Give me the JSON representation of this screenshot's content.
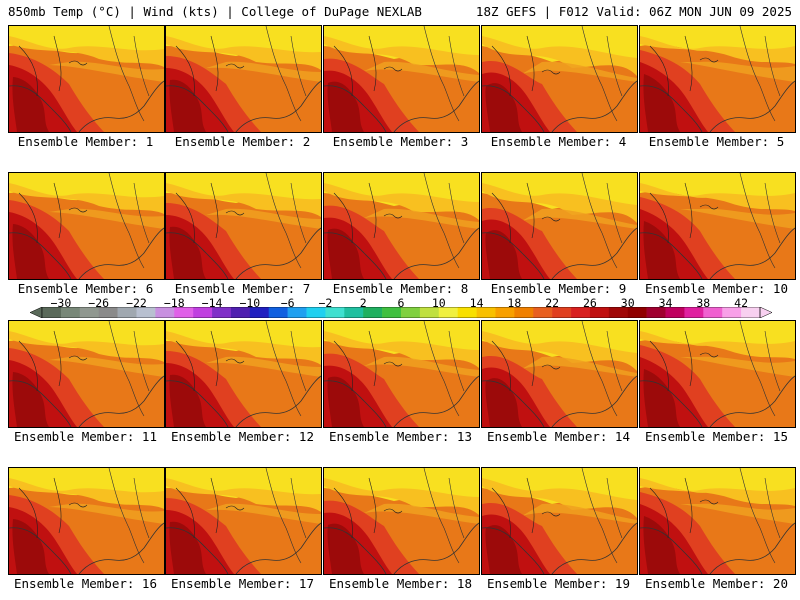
{
  "header": {
    "left": "850mb Temp (°C) | Wind (kts) | College of DuPage NEXLAB",
    "right": "18Z GEFS | F012 Valid: 06Z MON JUN 09 2025"
  },
  "member_label_prefix": "Ensemble Member: ",
  "members": [
    1,
    2,
    3,
    4,
    5,
    6,
    7,
    8,
    9,
    10,
    11,
    12,
    13,
    14,
    15,
    16,
    17,
    18,
    19,
    20
  ],
  "colorbar": {
    "tick_labels": [
      "−30",
      "−26",
      "−22",
      "−18",
      "−14",
      "−10",
      "−6",
      "−2",
      "2",
      "6",
      "10",
      "14",
      "18",
      "22",
      "26",
      "30",
      "34",
      "38",
      "42"
    ],
    "colors": [
      "#5a6a5a",
      "#788878",
      "#909890",
      "#8a8a8a",
      "#a0a8b0",
      "#b8c0d0",
      "#c890e0",
      "#e060e8",
      "#c040e0",
      "#8030c8",
      "#5020b0",
      "#2020c0",
      "#1060e0",
      "#20a0f0",
      "#20d0f0",
      "#40e0d0",
      "#20c0a0",
      "#20b060",
      "#40c040",
      "#80d040",
      "#c0e040",
      "#f0f040",
      "#f8e000",
      "#f8c000",
      "#f8a000",
      "#f08000",
      "#e86020",
      "#e04020",
      "#d82020",
      "#c01010",
      "#a00808",
      "#900000",
      "#a00030",
      "#c00060",
      "#e020a0",
      "#f060d0",
      "#f8a0e8",
      "#f8d0f0"
    ]
  },
  "map_colors": {
    "yellow": "#f8e020",
    "light_orange": "#f8c020",
    "orange": "#f0a020",
    "dark_orange": "#e87818",
    "red": "#e04020",
    "dark_red": "#c01010",
    "deep_red": "#900808"
  }
}
